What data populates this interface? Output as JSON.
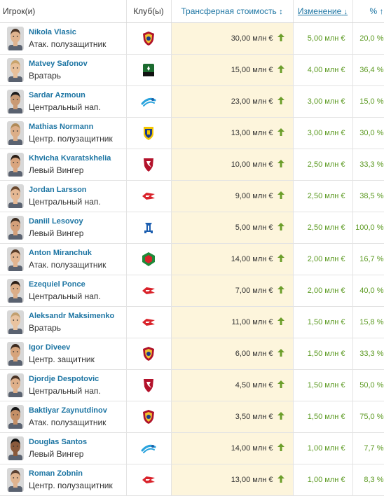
{
  "header": {
    "player": "Игрок(и)",
    "club": "Клуб(ы)",
    "value": "Трансферная стоимость",
    "value_sort_icon": "↕",
    "change": "Изменение",
    "change_sort_icon": "↓",
    "pct": "% ↑"
  },
  "colors": {
    "link": "#1d75a3",
    "positive": "#5c9a22",
    "value_bg": "#fdf5dc"
  },
  "rows": [
    {
      "name": "Nikola Vlasic",
      "position": "Атак. полузащитник",
      "club": "cska-crest-icon",
      "value": "30,00 млн €",
      "change": "5,00 млн €",
      "pct": "20,0 %"
    },
    {
      "name": "Matvey Safonov",
      "position": "Вратарь",
      "club": "krasnodar-crest-icon",
      "value": "15,00 млн €",
      "change": "4,00 млн €",
      "pct": "36,4 %"
    },
    {
      "name": "Sardar Azmoun",
      "position": "Центральный нап.",
      "club": "zenit-crest-icon",
      "value": "23,00 млн €",
      "change": "3,00 млн €",
      "pct": "15,0 %"
    },
    {
      "name": "Mathias Normann",
      "position": "Центр. полузащитник",
      "club": "rostov-crest-icon",
      "value": "13,00 млн €",
      "change": "3,00 млн €",
      "pct": "30,0 %"
    },
    {
      "name": "Khvicha Kvaratskhelia",
      "position": "Левый Вингер",
      "club": "rubin-crest-icon",
      "value": "10,00 млн €",
      "change": "2,50 млн €",
      "pct": "33,3 %"
    },
    {
      "name": "Jordan Larsson",
      "position": "Центральный нап.",
      "club": "spartak-crest-icon",
      "value": "9,00 млн €",
      "change": "2,50 млн €",
      "pct": "38,5 %"
    },
    {
      "name": "Daniil Lesovoy",
      "position": "Левый Вингер",
      "club": "dynamo-crest-icon",
      "value": "5,00 млн €",
      "change": "2,50 млн €",
      "pct": "100,0 %"
    },
    {
      "name": "Anton Miranchuk",
      "position": "Атак. полузащитник",
      "club": "lokomotiv-crest-icon",
      "value": "14,00 млн €",
      "change": "2,00 млн €",
      "pct": "16,7 %"
    },
    {
      "name": "Ezequiel Ponce",
      "position": "Центральный нап.",
      "club": "spartak-crest-icon",
      "value": "7,00 млн €",
      "change": "2,00 млн €",
      "pct": "40,0 %"
    },
    {
      "name": "Aleksandr Maksimenko",
      "position": "Вратарь",
      "club": "spartak-crest-icon",
      "value": "11,00 млн €",
      "change": "1,50 млн €",
      "pct": "15,8 %"
    },
    {
      "name": "Igor Diveev",
      "position": "Центр. защитник",
      "club": "cska-crest-icon",
      "value": "6,00 млн €",
      "change": "1,50 млн €",
      "pct": "33,3 %"
    },
    {
      "name": "Djordje Despotovic",
      "position": "Центральный нап.",
      "club": "rubin-crest-icon",
      "value": "4,50 млн €",
      "change": "1,50 млн €",
      "pct": "50,0 %"
    },
    {
      "name": "Baktiyar Zaynutdinov",
      "position": "Атак. полузащитник",
      "club": "cska-crest-icon",
      "value": "3,50 млн €",
      "change": "1,50 млн €",
      "pct": "75,0 %"
    },
    {
      "name": "Douglas Santos",
      "position": "Левый Вингер",
      "club": "zenit-crest-icon",
      "value": "14,00 млн €",
      "change": "1,00 млн €",
      "pct": "7,7 %"
    },
    {
      "name": "Roman Zobnin",
      "position": "Центр. полузащитник",
      "club": "spartak-crest-icon",
      "value": "13,00 млн €",
      "change": "1,00 млн €",
      "pct": "8,3 %"
    }
  ]
}
